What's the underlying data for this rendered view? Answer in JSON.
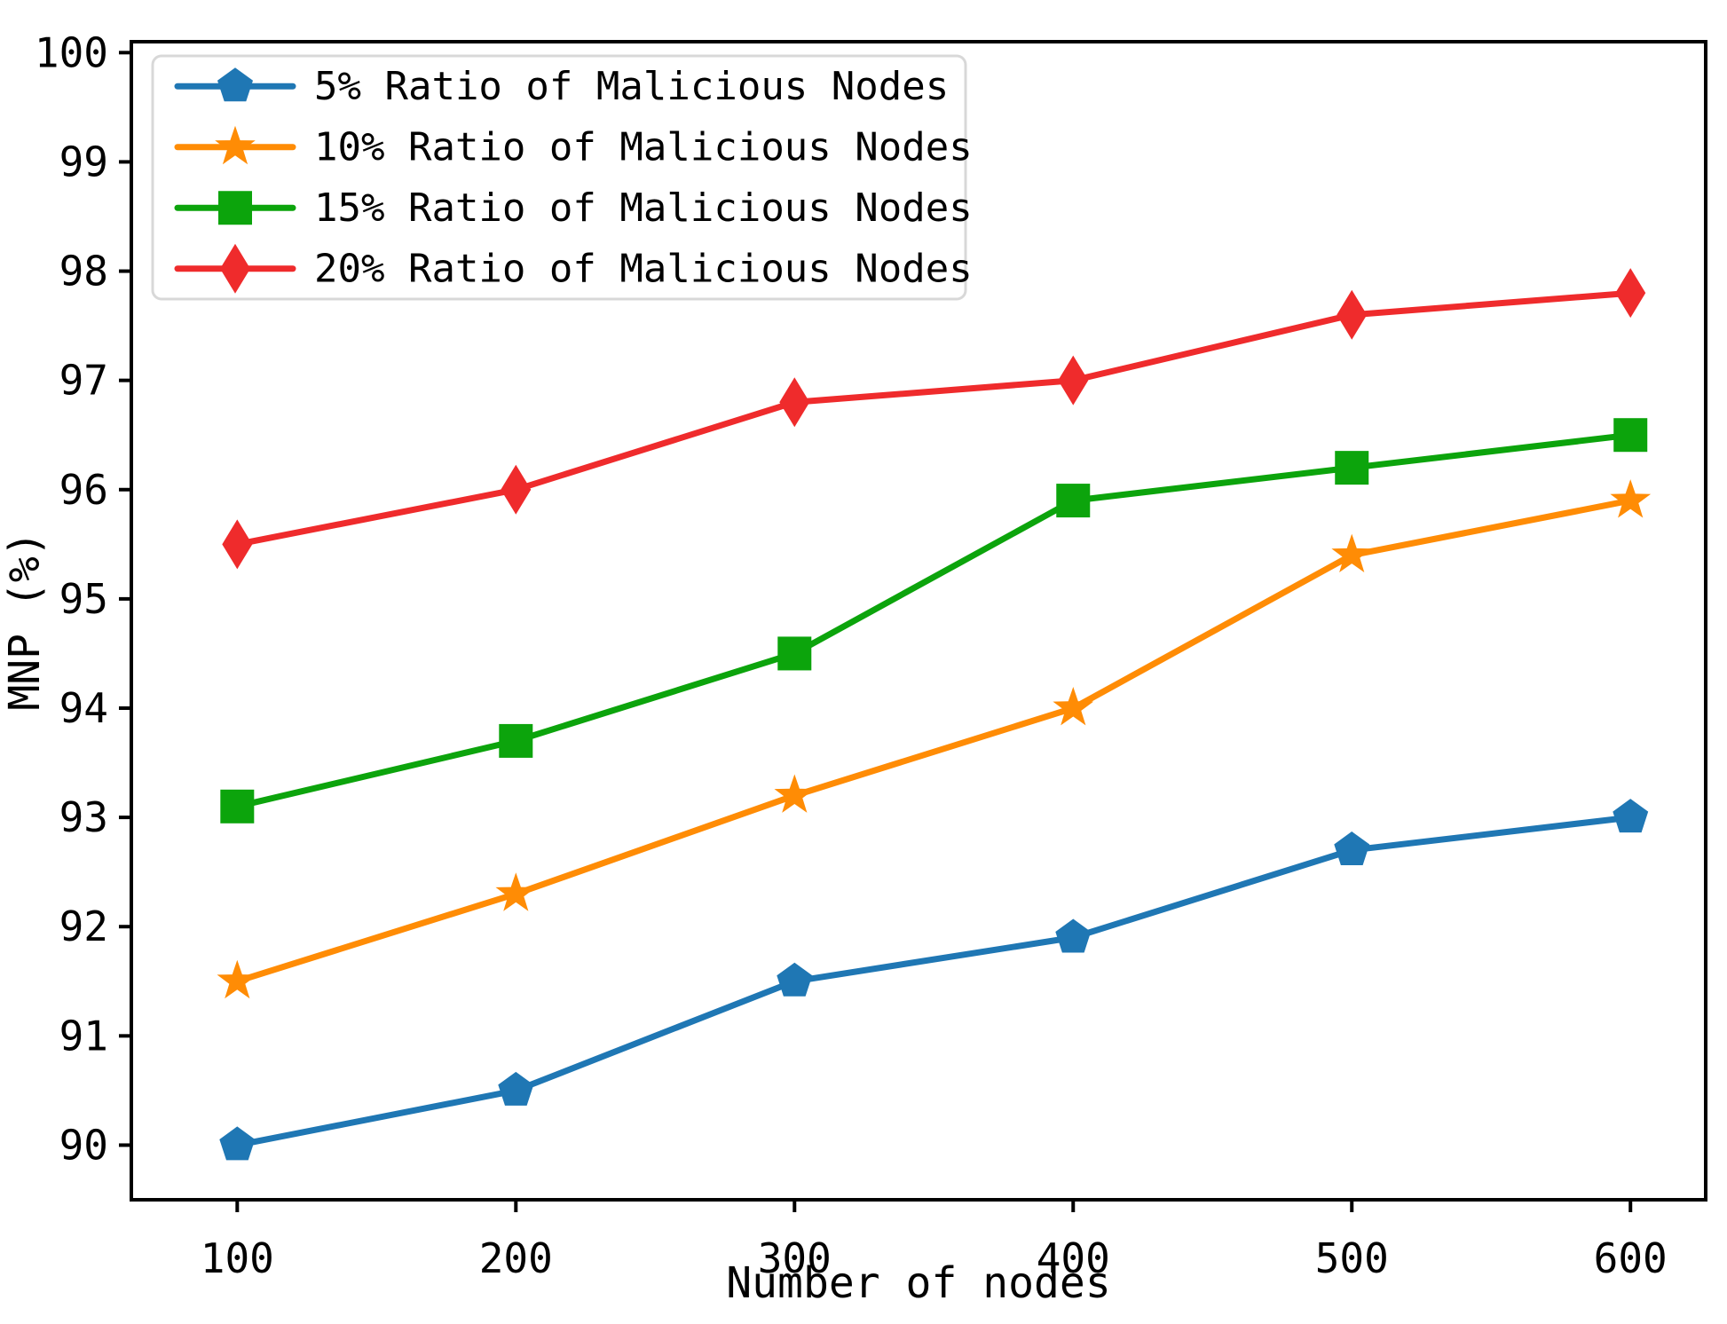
{
  "chart_data": {
    "type": "line",
    "x": [
      100,
      200,
      300,
      400,
      500,
      600
    ],
    "series": [
      {
        "name": "5% Ratio of Malicious Nodes",
        "marker": "pentagon",
        "color": "#1f77b4",
        "values": [
          90.0,
          90.5,
          91.5,
          91.9,
          92.7,
          93.0
        ]
      },
      {
        "name": "10% Ratio of Malicious Nodes",
        "marker": "star",
        "color": "#ff8c05",
        "values": [
          91.5,
          92.3,
          93.2,
          94.0,
          95.4,
          95.9
        ]
      },
      {
        "name": "15% Ratio of Malicious Nodes",
        "marker": "square",
        "color": "#0ca40c",
        "values": [
          93.1,
          93.7,
          94.5,
          95.9,
          96.2,
          96.5
        ]
      },
      {
        "name": "20% Ratio of Malicious Nodes",
        "marker": "diamond-thin",
        "color": "#ef2b2c",
        "values": [
          95.5,
          96.0,
          96.8,
          97.0,
          97.6,
          97.8
        ]
      }
    ],
    "title": "",
    "xlabel": "Number of nodes",
    "ylabel": "MNP (%)",
    "xticks": [
      100,
      200,
      300,
      400,
      500,
      600
    ],
    "yticks": [
      90,
      91,
      92,
      93,
      94,
      95,
      96,
      97,
      98,
      99,
      100
    ],
    "xlim": [
      62,
      627
    ],
    "ylim": [
      89.5,
      100.1
    ],
    "grid": false,
    "legend_position": "upper-left",
    "axis_color": "#000000",
    "legend_border_color": "#d8d8d8",
    "background_color": "#ffffff"
  }
}
